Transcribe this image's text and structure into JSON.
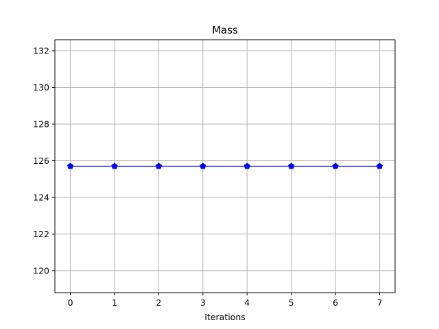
{
  "chart_data": {
    "type": "line",
    "title": "Mass",
    "xlabel": "Iterations",
    "ylabel": "",
    "x": [
      0,
      1,
      2,
      3,
      4,
      5,
      6,
      7
    ],
    "series": [
      {
        "values": [
          125.7,
          125.7,
          125.7,
          125.7,
          125.7,
          125.7,
          125.7,
          125.7
        ],
        "color": "#0000ff",
        "marker": "pentagon"
      }
    ],
    "xlim": [
      -0.35,
      7.35
    ],
    "ylim": [
      118.8,
      132.6
    ],
    "xticks": [
      0,
      1,
      2,
      3,
      4,
      5,
      6,
      7
    ],
    "yticks": [
      120,
      122,
      124,
      126,
      128,
      130,
      132
    ],
    "grid": true,
    "grid_color": "#b0b0b0"
  }
}
